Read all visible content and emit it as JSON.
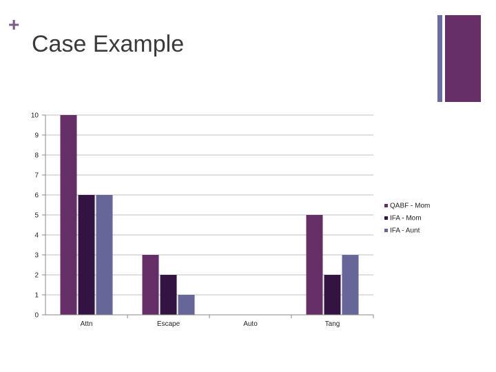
{
  "slide": {
    "plus": "+",
    "title": "Case Example"
  },
  "colors": {
    "accent_plus": "#7b5b8c",
    "accent_thin": "#6b6ba3",
    "accent_thick": "#632f66",
    "grid": "#bfbfbf"
  },
  "chart_data": {
    "type": "bar",
    "categories": [
      "Attn",
      "Escape",
      "Auto",
      "Tang"
    ],
    "series": [
      {
        "name": "QABF - Mom",
        "values": [
          10,
          3,
          0,
          5
        ],
        "color": "#632f66"
      },
      {
        "name": "IFA - Mom",
        "values": [
          6,
          2,
          0,
          2
        ],
        "color": "#321341"
      },
      {
        "name": "IFA - Aunt",
        "values": [
          6,
          1,
          0,
          3
        ],
        "color": "#676699"
      }
    ],
    "yticks": [
      0,
      1,
      2,
      3,
      4,
      5,
      6,
      7,
      8,
      9,
      10
    ],
    "ylim": [
      0,
      10
    ],
    "grid": true,
    "legend_position": "right",
    "xlabel": "",
    "ylabel": ""
  }
}
